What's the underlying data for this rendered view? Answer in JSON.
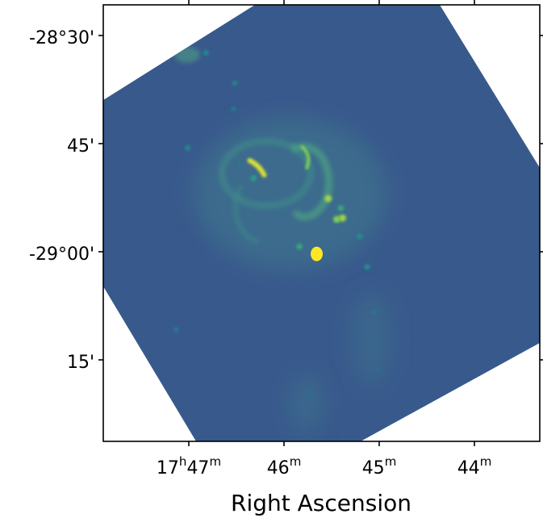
{
  "chart_data": {
    "type": "heatmap",
    "title": "",
    "xlabel": "Right Ascension",
    "ylabel": "",
    "x_ticks": [
      {
        "h": "17",
        "m": "47",
        "ra_hours": 17.7833
      },
      {
        "h": "",
        "m": "46",
        "ra_hours": 17.7667
      },
      {
        "h": "",
        "m": "45",
        "ra_hours": 17.75
      },
      {
        "h": "",
        "m": "44",
        "ra_hours": 17.7333
      }
    ],
    "y_ticks": [
      {
        "label": "-28°30'",
        "dec_deg": -28.5
      },
      {
        "label": "45'",
        "dec_deg": -28.75
      },
      {
        "label": "-29°00'",
        "dec_deg": -29.0
      },
      {
        "label": "15'",
        "dec_deg": -29.25
      }
    ],
    "grid": false,
    "colormap": "viridis",
    "background_color": "#38598c",
    "features": [
      {
        "name": "brightest compact source",
        "ra_hours": 17.761,
        "dec_deg": -29.005,
        "level": 1.0
      },
      {
        "name": "bright arc",
        "ra_hours": 17.771,
        "dec_deg": -28.804,
        "level": 0.95
      },
      {
        "name": "arc filament",
        "ra_hours": 17.763,
        "dec_deg": -28.78,
        "level": 0.8
      },
      {
        "name": "compact knot",
        "ra_hours": 17.759,
        "dec_deg": -28.877,
        "level": 0.85
      },
      {
        "name": "compact knot",
        "ra_hours": 17.7565,
        "dec_deg": -28.922,
        "level": 0.85
      },
      {
        "name": "compact knot",
        "ra_hours": 17.7575,
        "dec_deg": -28.925,
        "level": 0.8
      },
      {
        "name": "compact knot",
        "ra_hours": 17.7568,
        "dec_deg": -28.899,
        "level": 0.6
      },
      {
        "name": "compact knot",
        "ra_hours": 17.764,
        "dec_deg": -28.988,
        "level": 0.6
      },
      {
        "name": "compact knot",
        "ra_hours": 17.7535,
        "dec_deg": -28.965,
        "level": 0.5
      },
      {
        "name": "compact knot",
        "ra_hours": 17.7522,
        "dec_deg": -29.035,
        "level": 0.5
      },
      {
        "name": "compact knot",
        "ra_hours": 17.772,
        "dec_deg": -28.83,
        "level": 0.55
      },
      {
        "name": "faint source",
        "ra_hours": 17.7803,
        "dec_deg": -28.54,
        "level": 0.45
      },
      {
        "name": "faint source",
        "ra_hours": 17.7753,
        "dec_deg": -28.61,
        "level": 0.4
      },
      {
        "name": "faint source",
        "ra_hours": 17.7755,
        "dec_deg": -28.67,
        "level": 0.35
      },
      {
        "name": "faint source",
        "ra_hours": 17.7835,
        "dec_deg": -28.76,
        "level": 0.45
      },
      {
        "name": "faint source",
        "ra_hours": 17.7745,
        "dec_deg": -28.8,
        "level": 0.3
      },
      {
        "name": "faint source",
        "ra_hours": 17.7855,
        "dec_deg": -29.18,
        "level": 0.35
      },
      {
        "name": "faint source",
        "ra_hours": 17.7509,
        "dec_deg": -29.14,
        "level": 0.3
      },
      {
        "name": "faint source",
        "ra_hours": 17.7503,
        "dec_deg": -29.27,
        "level": 0.25
      },
      {
        "name": "faint source",
        "ra_hours": 17.7623,
        "dec_deg": -29.33,
        "level": 0.25
      }
    ]
  }
}
